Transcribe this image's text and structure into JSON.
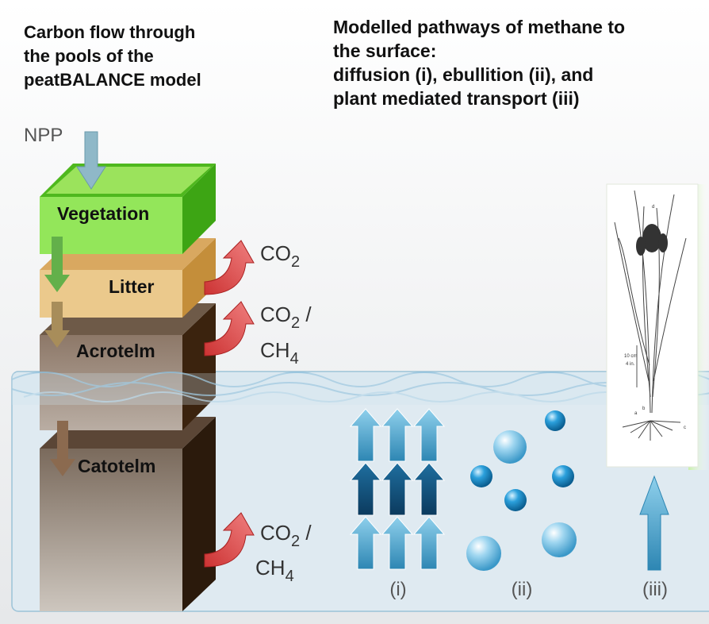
{
  "left_title": {
    "lines": [
      "Carbon flow through",
      "the pools of the",
      "peatBALANCE model"
    ]
  },
  "right_title": {
    "lines": [
      "Modelled pathways of methane to",
      "the surface:",
      "diffusion (i), ebullition (ii), and",
      "plant mediated transport (iii)"
    ]
  },
  "input": "NPP",
  "pools": [
    "Vegetation",
    "Litter",
    "Acrotelm",
    "Catotelm"
  ],
  "fluxes": [
    {
      "lines": [
        {
          "text": "CO",
          "sub": "2"
        }
      ]
    },
    {
      "lines": [
        {
          "text": "CO",
          "sub": "2",
          "after": " /"
        },
        {
          "text": "CH",
          "sub": "4"
        }
      ]
    },
    {
      "lines": [
        {
          "text": "CO",
          "sub": "2",
          "after": " /"
        },
        {
          "text": "CH",
          "sub": "4"
        }
      ]
    }
  ],
  "pathways": [
    "(i)",
    "(ii)",
    "(iii)"
  ],
  "plant_labels": [
    "d",
    "10 cm",
    "4 in.",
    "a",
    "b",
    "c"
  ]
}
